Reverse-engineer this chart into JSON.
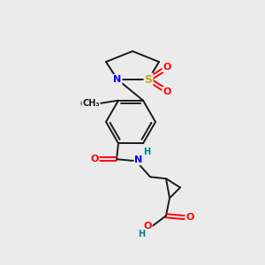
{
  "bg_color": "#ebebeb",
  "bond_color": "#1a1a1a",
  "atom_colors": {
    "N": "#0000ff",
    "O": "#ff0000",
    "S": "#ccaa00",
    "H": "#008080",
    "C": "#1a1a1a"
  },
  "figsize": [
    3.0,
    3.0
  ],
  "dpi": 100
}
